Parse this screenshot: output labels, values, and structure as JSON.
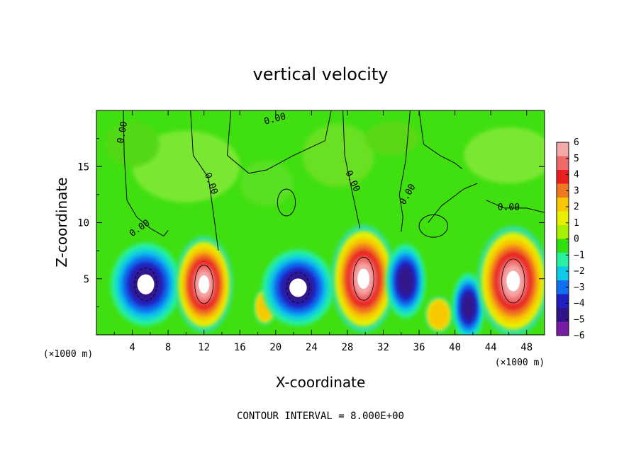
{
  "chart_data": {
    "type": "heatmap",
    "title": "vertical velocity",
    "xlabel": "X-coordinate",
    "ylabel": "Z-coordinate",
    "x_unit_left": "(×1000 m)",
    "x_unit_right": "(×1000 m)",
    "xlim": [
      0,
      50
    ],
    "ylim": [
      0,
      20
    ],
    "x_ticks": [
      4,
      8,
      12,
      16,
      20,
      24,
      28,
      32,
      36,
      40,
      44,
      48
    ],
    "y_ticks": [
      5,
      10,
      15
    ],
    "colorbar": {
      "ticks": [
        6,
        5,
        4,
        3,
        2,
        1,
        0,
        -1,
        -2,
        -3,
        -4,
        -5,
        -6
      ],
      "labels": [
        "6",
        "5",
        "4",
        "3",
        "2",
        "1",
        "0",
        "−1",
        "−2",
        "−3",
        "−4",
        "−5",
        "−6"
      ],
      "colors": [
        "#f4a8a8",
        "#f06a6a",
        "#e82020",
        "#f07820",
        "#f8c800",
        "#e8f000",
        "#a8f000",
        "#30e010",
        "#28f0a0",
        "#10c8e8",
        "#1070f0",
        "#2020c0",
        "#30128a",
        "#7a1aa8"
      ]
    },
    "contour_labels": [
      "0.00",
      "0.00",
      "0.00",
      "0.00",
      "0.00",
      "0.00",
      "0.00"
    ],
    "footnote": "CONTOUR INTERVAL = 8.000E+00",
    "features": [
      {
        "x": 5.5,
        "z": 4.5,
        "sign": "down",
        "peak": -8
      },
      {
        "x": 12.0,
        "z": 4.5,
        "sign": "up",
        "peak": 8
      },
      {
        "x": 18.8,
        "z": 2.5,
        "sign": "up",
        "peak": 3
      },
      {
        "x": 22.5,
        "z": 4.2,
        "sign": "down",
        "peak": -8
      },
      {
        "x": 29.8,
        "z": 5.0,
        "sign": "up",
        "peak": 8
      },
      {
        "x": 34.5,
        "z": 4.8,
        "sign": "down",
        "peak": -6
      },
      {
        "x": 38.2,
        "z": 1.8,
        "sign": "up",
        "peak": 3
      },
      {
        "x": 41.5,
        "z": 2.5,
        "sign": "down",
        "peak": -6
      },
      {
        "x": 46.5,
        "z": 4.8,
        "sign": "up",
        "peak": 8
      }
    ]
  }
}
